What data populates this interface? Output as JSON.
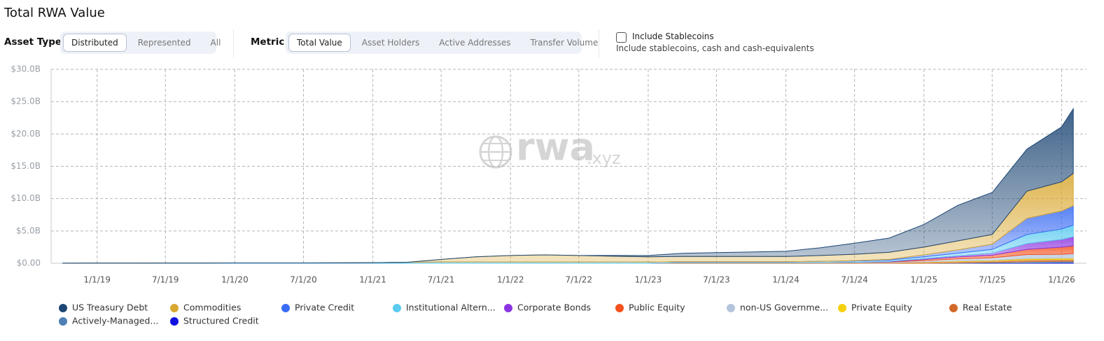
{
  "chart_data": {
    "type": "stacked-area",
    "title": "Total RWA Value",
    "watermark": {
      "main": "rwa",
      "suffix": ".xyz"
    },
    "x": [
      "10/1/18",
      "1/1/19",
      "4/1/19",
      "7/1/19",
      "10/1/19",
      "1/1/20",
      "4/1/20",
      "7/1/20",
      "10/1/20",
      "1/1/21",
      "4/1/21",
      "7/1/21",
      "10/1/21",
      "1/1/22",
      "4/1/22",
      "7/1/22",
      "10/1/22",
      "1/1/23",
      "4/1/23",
      "7/1/23",
      "10/1/23",
      "1/1/24",
      "4/1/24",
      "7/1/24",
      "10/1/24",
      "1/1/25",
      "4/1/25",
      "7/1/25",
      "10/1/25",
      "1/1/26",
      "2/1/26"
    ],
    "xlim": [
      "9/1/18",
      "3/8/26"
    ],
    "xticks": [
      "1/1/19",
      "7/1/19",
      "1/1/20",
      "7/1/20",
      "1/1/21",
      "7/1/21",
      "1/1/22",
      "7/1/22",
      "1/1/23",
      "7/1/23",
      "1/1/24",
      "7/1/24",
      "1/1/25",
      "7/1/25",
      "1/1/26"
    ],
    "ylim": [
      0,
      30
    ],
    "yticks": [
      {
        "value": 0,
        "label": "$0.00"
      },
      {
        "value": 5,
        "label": "$5.0B"
      },
      {
        "value": 10,
        "label": "$10.0B"
      },
      {
        "value": 15,
        "label": "$15.0B"
      },
      {
        "value": 20,
        "label": "$20.0B"
      },
      {
        "value": 25,
        "label": "$25.0B"
      },
      {
        "value": 30,
        "label": "$30.0B"
      }
    ],
    "grid": true,
    "series": [
      {
        "name": "US Treasury Debt",
        "color": "#1d4674",
        "values": [
          0,
          0,
          0,
          0,
          0,
          0,
          0,
          0,
          0,
          0,
          0,
          0,
          0,
          0,
          0,
          0,
          0.1,
          0.2,
          0.5,
          0.6,
          0.7,
          0.8,
          1.2,
          1.7,
          2.2,
          3.5,
          5.5,
          6.5,
          6.5,
          8.5,
          10
        ]
      },
      {
        "name": "Commodities",
        "color": "#d9a832",
        "values": [
          0,
          0,
          0,
          0,
          0,
          0,
          0,
          0,
          0,
          0,
          0,
          0.4,
          0.8,
          1.0,
          1.1,
          1.0,
          0.9,
          0.8,
          0.8,
          0.8,
          0.8,
          0.8,
          0.9,
          1.0,
          1.1,
          1.2,
          1.4,
          1.5,
          4.2,
          4.5,
          5.0
        ]
      },
      {
        "name": "Private Credit",
        "color": "#3a6cf4",
        "values": [
          0,
          0,
          0,
          0,
          0,
          0,
          0,
          0,
          0,
          0,
          0,
          0,
          0,
          0,
          0,
          0,
          0,
          0,
          0,
          0,
          0,
          0,
          0,
          0.05,
          0.1,
          0.3,
          0.5,
          0.8,
          2.5,
          2.8,
          3.0
        ]
      },
      {
        "name": "Institutional Altern...",
        "color": "#5ccbf0",
        "values": [
          0.02,
          0.03,
          0.03,
          0.04,
          0.04,
          0.05,
          0.05,
          0.06,
          0.07,
          0.1,
          0.15,
          0.2,
          0.2,
          0.2,
          0.2,
          0.2,
          0.2,
          0.2,
          0.15,
          0.15,
          0.15,
          0.15,
          0.2,
          0.2,
          0.2,
          0.3,
          0.4,
          0.6,
          1.4,
          1.6,
          1.8
        ]
      },
      {
        "name": "Corporate Bonds",
        "color": "#8b35e0",
        "values": [
          0,
          0,
          0,
          0,
          0,
          0,
          0,
          0,
          0,
          0,
          0,
          0,
          0,
          0,
          0,
          0,
          0,
          0,
          0,
          0,
          0,
          0,
          0,
          0,
          0.05,
          0.1,
          0.2,
          0.3,
          0.9,
          1.2,
          1.4
        ]
      },
      {
        "name": "Public Equity",
        "color": "#f4511e",
        "values": [
          0,
          0,
          0,
          0,
          0,
          0,
          0,
          0,
          0,
          0,
          0,
          0,
          0,
          0,
          0,
          0,
          0,
          0,
          0,
          0,
          0,
          0,
          0,
          0,
          0.05,
          0.2,
          0.3,
          0.4,
          0.8,
          1.1,
          1.2
        ]
      },
      {
        "name": "non-US Governme...",
        "color": "#b3c3dc",
        "values": [
          0,
          0,
          0,
          0,
          0,
          0,
          0,
          0,
          0,
          0,
          0,
          0,
          0,
          0,
          0,
          0,
          0,
          0,
          0,
          0,
          0,
          0,
          0,
          0.05,
          0.1,
          0.2,
          0.3,
          0.4,
          0.6,
          0.6,
          0.7
        ]
      },
      {
        "name": "Private Equity",
        "color": "#f5d10f",
        "values": [
          0,
          0,
          0,
          0,
          0,
          0,
          0,
          0,
          0,
          0,
          0,
          0,
          0,
          0,
          0,
          0,
          0,
          0,
          0,
          0,
          0,
          0,
          0,
          0,
          0,
          0.05,
          0.1,
          0.1,
          0.2,
          0.2,
          0.2
        ]
      },
      {
        "name": "Real Estate",
        "color": "#d2692a",
        "values": [
          0,
          0,
          0,
          0,
          0,
          0,
          0,
          0,
          0,
          0,
          0,
          0,
          0,
          0,
          0,
          0,
          0,
          0,
          0.1,
          0.1,
          0.1,
          0.1,
          0.1,
          0.1,
          0.1,
          0.15,
          0.2,
          0.2,
          0.3,
          0.3,
          0.3
        ]
      },
      {
        "name": "Actively-Managed...",
        "color": "#4f80b5",
        "values": [
          0,
          0,
          0,
          0,
          0,
          0,
          0,
          0,
          0,
          0,
          0,
          0,
          0,
          0,
          0,
          0,
          0,
          0,
          0,
          0,
          0,
          0,
          0,
          0,
          0,
          0,
          0.05,
          0.1,
          0.2,
          0.2,
          0.2
        ]
      },
      {
        "name": "Structured Credit",
        "color": "#1010e0",
        "values": [
          0,
          0,
          0,
          0,
          0,
          0,
          0,
          0,
          0,
          0,
          0,
          0,
          0,
          0,
          0,
          0,
          0,
          0,
          0,
          0,
          0,
          0,
          0,
          0,
          0,
          0,
          0.02,
          0.05,
          0.05,
          0.1,
          0.1
        ]
      }
    ]
  },
  "controls": {
    "asset_type": {
      "label": "Asset Type",
      "options": [
        {
          "label": "Distributed",
          "active": true
        },
        {
          "label": "Represented",
          "active": false
        },
        {
          "label": "All",
          "active": false
        }
      ]
    },
    "metric": {
      "label": "Metric",
      "options": [
        {
          "label": "Total Value",
          "active": true
        },
        {
          "label": "Asset Holders",
          "active": false
        },
        {
          "label": "Active Addresses",
          "active": false
        },
        {
          "label": "Transfer Volume",
          "active": false
        }
      ]
    },
    "stablecoins": {
      "label": "Include Stablecoins",
      "checked": false,
      "description": "Include stablecoins, cash and cash-equivalents"
    }
  }
}
